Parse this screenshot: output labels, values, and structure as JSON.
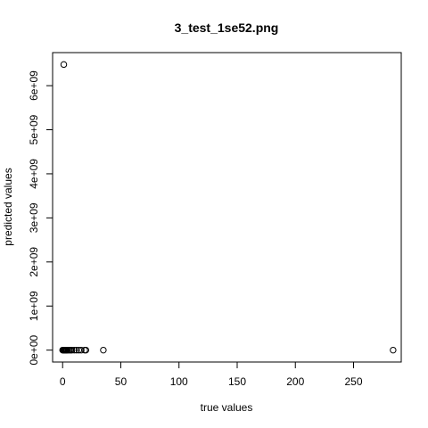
{
  "chart_data": {
    "type": "scatter",
    "title": "3_test_1se52.png",
    "xlabel": "true values",
    "ylabel": "predicted values",
    "xlim": [
      -8.6,
      291
    ],
    "ylim": [
      -270000000,
      6750000000
    ],
    "x_ticks": [
      {
        "value": 0,
        "label": "0"
      },
      {
        "value": 50,
        "label": "50"
      },
      {
        "value": 100,
        "label": "100"
      },
      {
        "value": 150,
        "label": "150"
      },
      {
        "value": 200,
        "label": "200"
      },
      {
        "value": 250,
        "label": "250"
      }
    ],
    "y_ticks": [
      {
        "value": 0,
        "label": "0e+00"
      },
      {
        "value": 1000000000,
        "label": "1e+09"
      },
      {
        "value": 2000000000,
        "label": "2e+09"
      },
      {
        "value": 3000000000,
        "label": "3e+09"
      },
      {
        "value": 4000000000,
        "label": "4e+09"
      },
      {
        "value": 5000000000,
        "label": "5e+09"
      },
      {
        "value": 6000000000,
        "label": "6e+09"
      }
    ],
    "points": [
      {
        "x": 1,
        "y": 6480000000
      },
      {
        "x": 0,
        "y": 0
      },
      {
        "x": 0.5,
        "y": 0
      },
      {
        "x": 1,
        "y": 0
      },
      {
        "x": 1.5,
        "y": 0
      },
      {
        "x": 2,
        "y": 0
      },
      {
        "x": 2.5,
        "y": 0
      },
      {
        "x": 3,
        "y": 0
      },
      {
        "x": 3.5,
        "y": 0
      },
      {
        "x": 4,
        "y": 0
      },
      {
        "x": 5,
        "y": 0
      },
      {
        "x": 6,
        "y": 0
      },
      {
        "x": 7,
        "y": 0
      },
      {
        "x": 8,
        "y": 0
      },
      {
        "x": 10,
        "y": 0
      },
      {
        "x": 12,
        "y": 0
      },
      {
        "x": 14,
        "y": 0
      },
      {
        "x": 16,
        "y": 0
      },
      {
        "x": 19,
        "y": 0
      },
      {
        "x": 20,
        "y": 0
      },
      {
        "x": 35,
        "y": 0
      },
      {
        "x": 284,
        "y": 0
      }
    ]
  }
}
